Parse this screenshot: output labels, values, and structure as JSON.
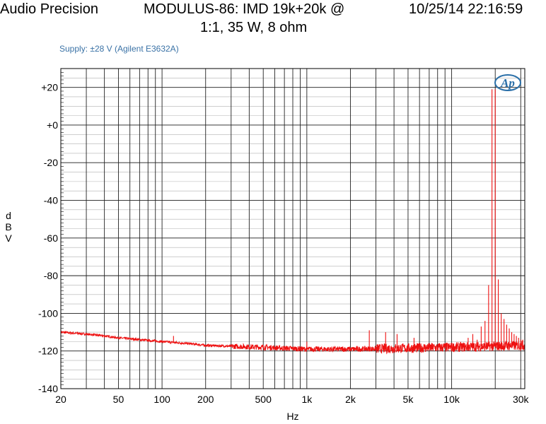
{
  "header": {
    "brand": "Audio Precision",
    "title_line1": "MODULUS-86: IMD 19k+20k @",
    "title_line2": "1:1, 35 W, 8 ohm",
    "timestamp": "10/25/14 22:16:59",
    "supply_note": "Supply: ±28 V (Agilent E3632A)",
    "logo_text": "Ap"
  },
  "chart_data": {
    "type": "line",
    "title": "MODULUS-86: IMD 19k+20k @ 1:1, 35 W, 8 ohm",
    "xlabel": "Hz",
    "ylabel": "dBV",
    "xscale": "log",
    "xlim": [
      20,
      32000
    ],
    "ylim": [
      -140,
      30
    ],
    "grid": true,
    "x_ticks": [
      {
        "value": 20,
        "label": "20"
      },
      {
        "value": 50,
        "label": "50"
      },
      {
        "value": 100,
        "label": "100"
      },
      {
        "value": 200,
        "label": "200"
      },
      {
        "value": 500,
        "label": "500"
      },
      {
        "value": 1000,
        "label": "1k"
      },
      {
        "value": 2000,
        "label": "2k"
      },
      {
        "value": 5000,
        "label": "5k"
      },
      {
        "value": 10000,
        "label": "10k"
      },
      {
        "value": 30000,
        "label": "30k"
      }
    ],
    "y_ticks": [
      {
        "value": 20,
        "label": "+20"
      },
      {
        "value": 0,
        "label": "+0"
      },
      {
        "value": -20,
        "label": "-20"
      },
      {
        "value": -40,
        "label": "-40"
      },
      {
        "value": -60,
        "label": "-60"
      },
      {
        "value": -80,
        "label": "-80"
      },
      {
        "value": -100,
        "label": "-100"
      },
      {
        "value": -120,
        "label": "-120"
      },
      {
        "value": -140,
        "label": "-140"
      }
    ],
    "line_color": "#ee1111",
    "grid_color": "#000000",
    "series": [
      {
        "noise_floor": {
          "x": [
            20,
            30,
            40,
            50,
            70,
            100,
            150,
            200,
            300,
            500,
            700,
            1000,
            2000,
            5000,
            10000,
            20000,
            32000
          ],
          "y": [
            -110,
            -111,
            -112,
            -113,
            -114,
            -115,
            -116,
            -117,
            -117.5,
            -118,
            -118.5,
            -119,
            -119,
            -118.5,
            -118,
            -117.5,
            -117
          ]
        },
        "spikes": [
          {
            "x": 120,
            "y": -112
          },
          {
            "x": 1000,
            "y": -115
          },
          {
            "x": 2700,
            "y": -109
          },
          {
            "x": 3500,
            "y": -110
          },
          {
            "x": 4200,
            "y": -111
          },
          {
            "x": 5500,
            "y": -113
          },
          {
            "x": 13000,
            "y": -113
          },
          {
            "x": 14000,
            "y": -111
          },
          {
            "x": 15000,
            "y": -114
          },
          {
            "x": 16000,
            "y": -107
          },
          {
            "x": 17000,
            "y": -104
          },
          {
            "x": 18000,
            "y": -85
          },
          {
            "x": 19000,
            "y": 19
          },
          {
            "x": 20000,
            "y": 19
          },
          {
            "x": 21000,
            "y": -82
          },
          {
            "x": 22000,
            "y": -100
          },
          {
            "x": 23000,
            "y": -103
          },
          {
            "x": 24000,
            "y": -106
          },
          {
            "x": 25000,
            "y": -108
          },
          {
            "x": 26000,
            "y": -110
          },
          {
            "x": 27000,
            "y": -111
          },
          {
            "x": 28000,
            "y": -112
          },
          {
            "x": 29000,
            "y": -113
          },
          {
            "x": 30000,
            "y": -114
          },
          {
            "x": 31000,
            "y": -114
          }
        ]
      }
    ]
  }
}
